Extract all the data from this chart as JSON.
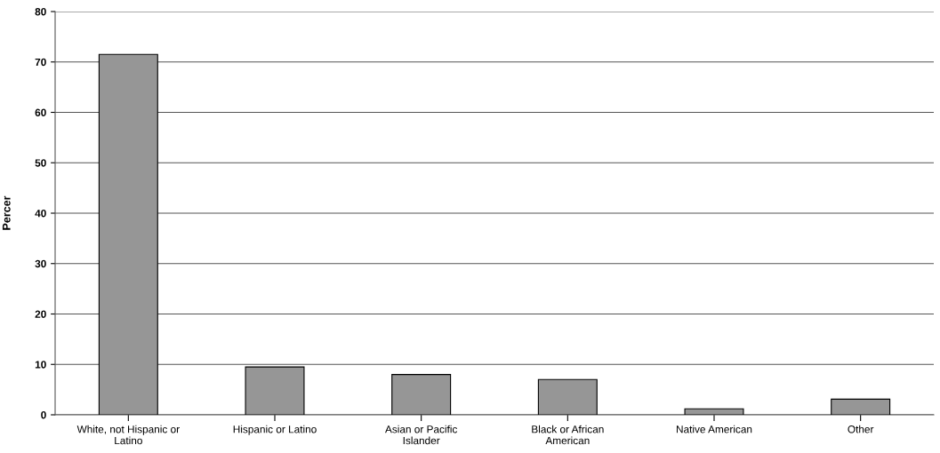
{
  "chart_data": {
    "type": "bar",
    "ylabel": "Percer",
    "categories": [
      "White, not Hispanic or\nLatino",
      "Hispanic or Latino",
      "Asian or Pacific\nIslander",
      "Black or African\nAmerican",
      "Native American",
      "Other"
    ],
    "values": [
      71.5,
      9.5,
      8,
      7,
      1.2,
      3.1
    ],
    "color": "#969696",
    "ylim": [
      0,
      80
    ],
    "yticks": [
      0,
      10,
      20,
      30,
      40,
      50,
      60,
      70,
      80
    ],
    "grid": "y"
  }
}
